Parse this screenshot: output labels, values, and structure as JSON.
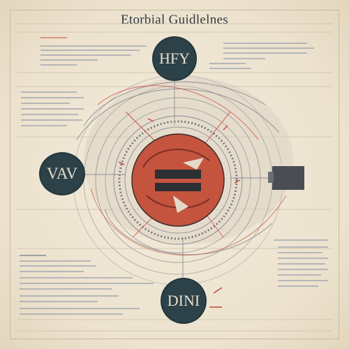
{
  "title": "Etorbial Guidlelnes",
  "nodes": {
    "top": "HFY",
    "left": "VAV",
    "bottom": "DINI"
  },
  "colors": {
    "background": "#efe6d4",
    "node_fill": "#2c4148",
    "core_red": "#c4543e",
    "accent_red": "#c8463a",
    "line_gray": "#8a8f94",
    "text_blue": "#5b6e8a"
  },
  "icons": {
    "core": "circular-emblem",
    "right_block": "dark-square-block"
  }
}
